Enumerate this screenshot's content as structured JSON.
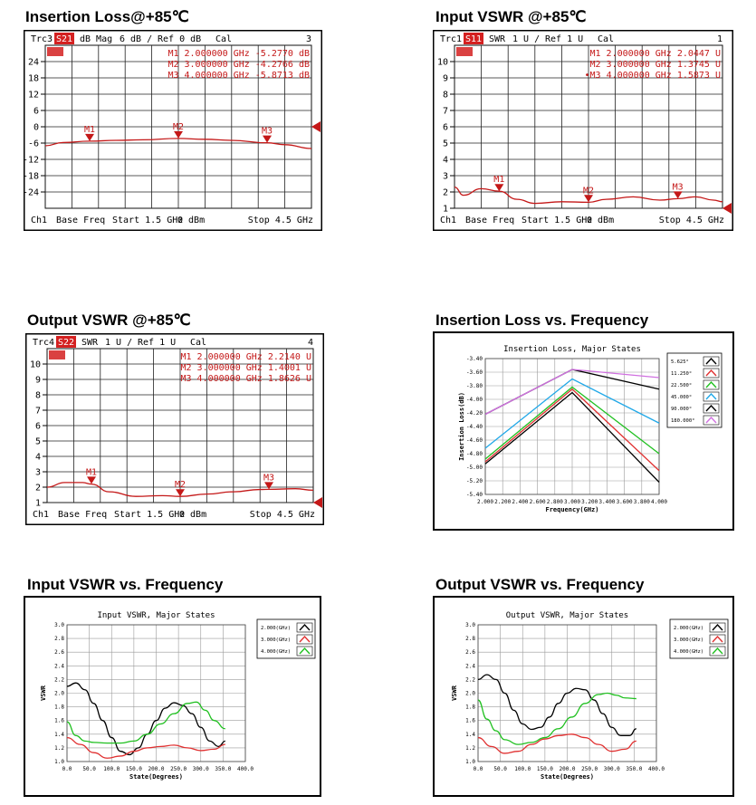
{
  "colors": {
    "analyzer_red": "#c41818",
    "analyzer_grid": "#111111",
    "badge_bg": "#d42020",
    "badge_text": "#ffffff"
  },
  "panel_titles": {
    "p1": "Insertion Loss@+85℃",
    "p2": "Input VSWR @+85℃",
    "p3": "Output VSWR @+85℃",
    "p4": "Insertion Loss vs. Frequency",
    "p5": "Input VSWR vs. Frequency",
    "p6": "Output  VSWR  vs. Frequency"
  },
  "chart_data": [
    {
      "type": "line",
      "style": "network-analyzer",
      "header": {
        "trace": "Trc3",
        "param": "S21",
        "format": "dB Mag",
        "scale": "6 dB /",
        "ref": "Ref 0 dB",
        "cal": "Cal",
        "num": "3"
      },
      "footer": {
        "ch": "Ch1",
        "mode": "Base Freq",
        "start": "Start  1.5 GHz",
        "power": "0 dBm",
        "stop": "Stop  4.5 GHz"
      },
      "ylim": [
        -30,
        30
      ],
      "yticks": [
        24,
        18,
        12,
        6,
        0,
        -6,
        -12,
        -18,
        -24
      ],
      "xlim": [
        1.5,
        4.5
      ],
      "ref_level": 0,
      "series": [
        {
          "x": [
            1.5,
            1.7,
            2.0,
            2.3,
            2.6,
            3.0,
            3.3,
            3.6,
            4.0,
            4.2,
            4.5
          ],
          "values": [
            -7.0,
            -5.8,
            -5.3,
            -5.0,
            -4.8,
            -4.3,
            -4.6,
            -5.0,
            -5.9,
            -6.6,
            -8.0
          ]
        }
      ],
      "markers": [
        {
          "label": "M1",
          "x": 2.0,
          "y": -5.277,
          "readout": "M1   2.000000  GHz   -5.2770  dB"
        },
        {
          "label": "M2",
          "x": 3.0,
          "y": -4.2766,
          "readout": "M2   3.000000  GHz   -4.2766  dB"
        },
        {
          "label": "M3",
          "x": 4.0,
          "y": -5.8713,
          "readout": "M3   4.000000  GHz   -5.8713  dB"
        }
      ]
    },
    {
      "type": "line",
      "style": "network-analyzer",
      "header": {
        "trace": "Trc1",
        "param": "S11",
        "format": "SWR",
        "scale": "1 U /",
        "ref": "Ref 1 U",
        "cal": "Cal",
        "num": "1"
      },
      "footer": {
        "ch": "Ch1",
        "mode": "Base Freq",
        "start": "Start  1.5 GHz",
        "power": "0 dBm",
        "stop": "Stop  4.5 GHz"
      },
      "ylim": [
        1,
        11
      ],
      "yticks": [
        10,
        9,
        8,
        7,
        6,
        5,
        4,
        3,
        2,
        1
      ],
      "xlim": [
        1.5,
        4.5
      ],
      "ref_level": 1,
      "series": [
        {
          "x": [
            1.5,
            1.6,
            1.8,
            2.0,
            2.2,
            2.4,
            2.7,
            3.0,
            3.2,
            3.5,
            3.8,
            4.0,
            4.2,
            4.4,
            4.5
          ],
          "values": [
            2.3,
            1.8,
            2.2,
            2.05,
            1.55,
            1.3,
            1.4,
            1.37,
            1.55,
            1.7,
            1.5,
            1.59,
            1.7,
            1.5,
            1.4
          ]
        }
      ],
      "markers": [
        {
          "label": "M1",
          "x": 2.0,
          "y": 2.0447,
          "readout": "M1   2.000000  GHz    2.0447  U"
        },
        {
          "label": "M2",
          "x": 3.0,
          "y": 1.3745,
          "readout": "M2   3.000000  GHz    1.3745  U"
        },
        {
          "label": "M3",
          "x": 4.0,
          "y": 1.5873,
          "readout": "•M3   4.000000  GHz    1.5873  U"
        }
      ]
    },
    {
      "type": "line",
      "style": "network-analyzer",
      "header": {
        "trace": "Trc4",
        "param": "S22",
        "format": "SWR",
        "scale": "1 U /",
        "ref": "Ref 1 U",
        "cal": "Cal",
        "num": "4"
      },
      "footer": {
        "ch": "Ch1",
        "mode": "Base Freq",
        "start": "Start  1.5 GHz",
        "power": "0 dBm",
        "stop": "Stop  4.5 GHz"
      },
      "ylim": [
        1,
        11
      ],
      "yticks": [
        10,
        9,
        8,
        7,
        6,
        5,
        4,
        3,
        2,
        1
      ],
      "xlim": [
        1.5,
        4.5
      ],
      "ref_level": 1,
      "series": [
        {
          "x": [
            1.5,
            1.7,
            1.9,
            2.0,
            2.2,
            2.5,
            2.8,
            3.0,
            3.3,
            3.6,
            3.9,
            4.0,
            4.3,
            4.5
          ],
          "values": [
            2.0,
            2.3,
            2.3,
            2.2,
            1.7,
            1.4,
            1.45,
            1.4,
            1.55,
            1.7,
            1.85,
            1.86,
            1.9,
            1.8
          ]
        }
      ],
      "markers": [
        {
          "label": "M1",
          "x": 2.0,
          "y": 2.214,
          "readout": "M1   2.000000  GHz    2.2140  U"
        },
        {
          "label": "M2",
          "x": 3.0,
          "y": 1.4001,
          "readout": "M2   3.000000  GHz    1.4001  U"
        },
        {
          "label": "M3",
          "x": 4.0,
          "y": 1.8626,
          "readout": "M3   4.000000  GHz    1.8626  U"
        }
      ]
    },
    {
      "type": "line",
      "style": "plot",
      "title": "Insertion Loss, Major States",
      "xlabel": "Frequency(GHz)",
      "ylabel": "Insertion Loss(dB)",
      "xlim": [
        2.0,
        4.0
      ],
      "ylim": [
        -5.4,
        -3.4
      ],
      "xticks": [
        "2.000",
        "2.200",
        "2.400",
        "2.600",
        "2.800",
        "3.000",
        "3.200",
        "3.400",
        "3.600",
        "3.800",
        "4.000"
      ],
      "yticks": [
        "-3.40",
        "-3.60",
        "-3.80",
        "-4.00",
        "-4.20",
        "-4.40",
        "-4.60",
        "-4.80",
        "-5.00",
        "-5.20",
        "-5.40"
      ],
      "x": [
        2.0,
        3.0,
        4.0
      ],
      "series": [
        {
          "name": "5.625°",
          "color": "#000000",
          "values": [
            -4.22,
            -3.56,
            -3.85
          ]
        },
        {
          "name": "11.250°",
          "color": "#e03030",
          "values": [
            -4.92,
            -3.85,
            -5.05
          ]
        },
        {
          "name": "22.500°",
          "color": "#20c020",
          "values": [
            -4.88,
            -3.82,
            -4.8
          ]
        },
        {
          "name": "45.000°",
          "color": "#20a8e8",
          "values": [
            -4.72,
            -3.7,
            -4.35
          ]
        },
        {
          "name": "90.000°",
          "color": "#000000",
          "values": [
            -4.95,
            -3.9,
            -5.22
          ]
        },
        {
          "name": "180.000°",
          "color": "#d070e0",
          "values": [
            -4.22,
            -3.56,
            -3.68
          ]
        }
      ]
    },
    {
      "type": "line",
      "style": "plot",
      "title": "Input VSWR, Major States",
      "xlabel": "State(Degrees)",
      "ylabel": "VSWR",
      "xlim": [
        0,
        400
      ],
      "ylim": [
        1.0,
        3.0
      ],
      "xticks": [
        "0.0",
        "50.0",
        "100.0",
        "150.0",
        "200.0",
        "250.0",
        "300.0",
        "350.0",
        "400.0"
      ],
      "yticks": [
        "3.0",
        "2.8",
        "2.6",
        "2.4",
        "2.2",
        "2.0",
        "1.8",
        "1.6",
        "1.4",
        "1.2",
        "1.0"
      ],
      "series": [
        {
          "name": "2.000(GHz)",
          "color": "#000000",
          "x": [
            0,
            20,
            40,
            60,
            80,
            100,
            120,
            140,
            160,
            180,
            200,
            220,
            240,
            260,
            280,
            300,
            320,
            340,
            355
          ],
          "values": [
            2.1,
            2.15,
            2.05,
            1.85,
            1.6,
            1.35,
            1.15,
            1.1,
            1.2,
            1.4,
            1.6,
            1.78,
            1.86,
            1.82,
            1.7,
            1.5,
            1.3,
            1.22,
            1.3
          ]
        },
        {
          "name": "3.000(GHz)",
          "color": "#e03030",
          "x": [
            0,
            30,
            60,
            90,
            120,
            150,
            180,
            210,
            240,
            270,
            300,
            330,
            355
          ],
          "values": [
            1.35,
            1.25,
            1.13,
            1.05,
            1.08,
            1.15,
            1.2,
            1.22,
            1.24,
            1.2,
            1.16,
            1.18,
            1.25
          ]
        },
        {
          "name": "4.000(GHz)",
          "color": "#20c020",
          "x": [
            0,
            20,
            40,
            60,
            90,
            120,
            150,
            180,
            210,
            240,
            270,
            290,
            310,
            330,
            355
          ],
          "values": [
            1.58,
            1.38,
            1.3,
            1.28,
            1.27,
            1.27,
            1.3,
            1.4,
            1.55,
            1.7,
            1.85,
            1.87,
            1.75,
            1.6,
            1.48
          ]
        }
      ]
    },
    {
      "type": "line",
      "style": "plot",
      "title": "Output VSWR, Major States",
      "xlabel": "State(Degrees)",
      "ylabel": "VSWR",
      "xlim": [
        0,
        400
      ],
      "ylim": [
        1.0,
        3.0
      ],
      "xticks": [
        "0.0",
        "50.0",
        "100.0",
        "150.0",
        "200.0",
        "250.0",
        "300.0",
        "350.0",
        "400.0"
      ],
      "yticks": [
        "3.0",
        "2.8",
        "2.6",
        "2.4",
        "2.2",
        "2.0",
        "1.8",
        "1.6",
        "1.4",
        "1.2",
        "1.0"
      ],
      "series": [
        {
          "name": "2.000(GHz)",
          "color": "#000000",
          "x": [
            0,
            20,
            40,
            60,
            80,
            100,
            120,
            140,
            160,
            180,
            200,
            220,
            240,
            260,
            280,
            300,
            320,
            340,
            355
          ],
          "values": [
            2.2,
            2.27,
            2.2,
            2.0,
            1.75,
            1.55,
            1.47,
            1.5,
            1.65,
            1.85,
            2.0,
            2.07,
            2.05,
            1.9,
            1.7,
            1.5,
            1.38,
            1.38,
            1.48
          ]
        },
        {
          "name": "3.000(GHz)",
          "color": "#e03030",
          "x": [
            0,
            30,
            60,
            90,
            120,
            150,
            180,
            210,
            240,
            270,
            300,
            330,
            355
          ],
          "values": [
            1.35,
            1.22,
            1.12,
            1.15,
            1.25,
            1.33,
            1.38,
            1.4,
            1.35,
            1.25,
            1.15,
            1.18,
            1.3
          ]
        },
        {
          "name": "4.000(GHz)",
          "color": "#20c020",
          "x": [
            0,
            20,
            40,
            60,
            90,
            120,
            150,
            180,
            210,
            240,
            270,
            290,
            310,
            330,
            355
          ],
          "values": [
            1.9,
            1.62,
            1.45,
            1.32,
            1.25,
            1.28,
            1.35,
            1.48,
            1.65,
            1.85,
            1.98,
            2.0,
            1.97,
            1.93,
            1.92
          ]
        }
      ]
    }
  ]
}
